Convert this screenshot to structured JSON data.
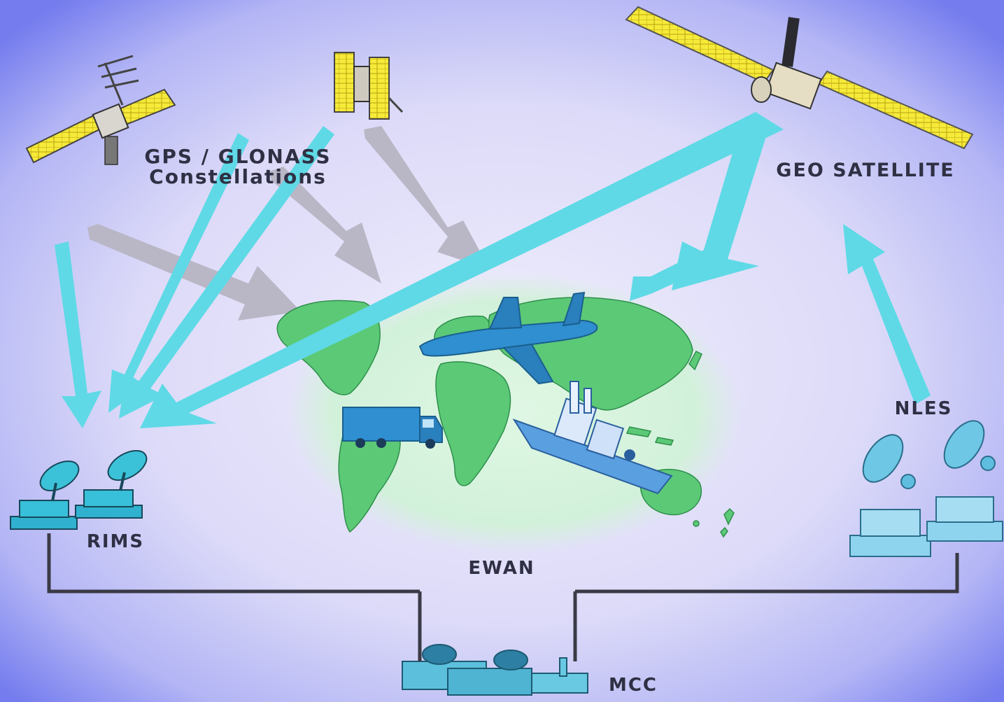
{
  "labels": {
    "gps_line1": "GPS / GLONASS",
    "gps_line2": "Constellations",
    "geo": "GEO SATELLITE",
    "nles": "NLES",
    "rims": "RIMS",
    "ewan": "EWAN",
    "mcc": "MCC"
  },
  "colors": {
    "background_center": "#ece9fb",
    "background_edge": "#7b83ef",
    "signal_arrow_cyan": "#5fd9e6",
    "ranging_arrow_gray": "#b9b6c6",
    "globe_glow": "#d4f3dc",
    "land": "#5cc977",
    "solar_panel": "#f5e83c",
    "vehicle_blue": "#2f8fd0",
    "network_line": "#3a3a46"
  }
}
